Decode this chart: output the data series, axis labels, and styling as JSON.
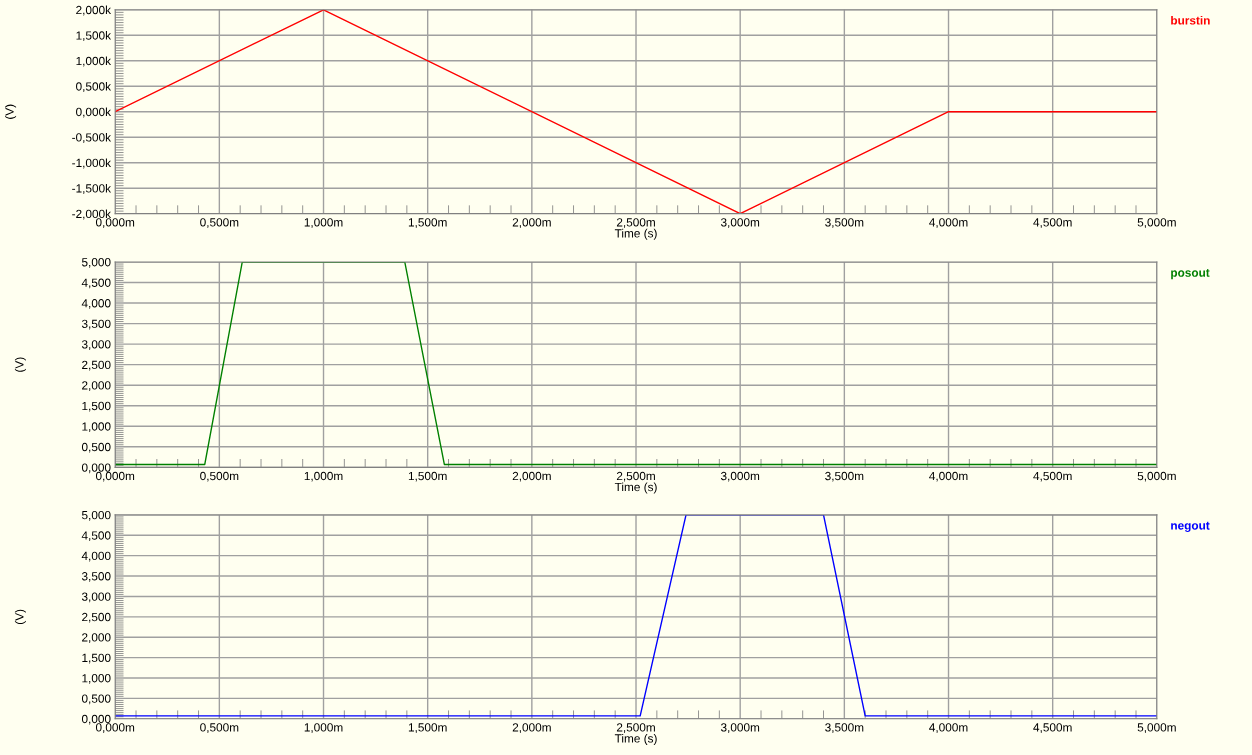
{
  "chart_data": [
    {
      "type": "line",
      "xlabel": "Time (s)",
      "ylabel": "(V)",
      "grid": true,
      "xlim": [
        0,
        5
      ],
      "ylim": [
        -2,
        2
      ],
      "x": [
        0,
        1,
        3,
        4,
        5
      ],
      "series": [
        {
          "name": "burstin",
          "color": "#ff0000",
          "values": [
            0,
            2,
            -2,
            0,
            0
          ]
        }
      ],
      "xticks": [
        {
          "value": 0,
          "label": "0,000m"
        },
        {
          "value": 0.5,
          "label": "0,500m"
        },
        {
          "value": 1,
          "label": "1,000m"
        },
        {
          "value": 1.5,
          "label": "1,500m"
        },
        {
          "value": 2,
          "label": "2,000m"
        },
        {
          "value": 2.5,
          "label": "2,500m"
        },
        {
          "value": 3,
          "label": "3,000m"
        },
        {
          "value": 3.5,
          "label": "3,500m"
        },
        {
          "value": 4,
          "label": "4,000m"
        },
        {
          "value": 4.5,
          "label": "4,500m"
        },
        {
          "value": 5,
          "label": "5,000m"
        }
      ],
      "yticks": [
        {
          "value": -2,
          "label": "-2,000k"
        },
        {
          "value": -1.5,
          "label": "-1,500k"
        },
        {
          "value": -1,
          "label": "-1,000k"
        },
        {
          "value": -0.5,
          "label": "-0,500k"
        },
        {
          "value": 0,
          "label": "0,000k"
        },
        {
          "value": 0.5,
          "label": "0,500k"
        },
        {
          "value": 1,
          "label": "1,000k"
        },
        {
          "value": 1.5,
          "label": "1,500k"
        },
        {
          "value": 2,
          "label": "2,000k"
        }
      ]
    },
    {
      "type": "line",
      "xlabel": "Time (s)",
      "ylabel": "(V)",
      "grid": true,
      "xlim": [
        0,
        5
      ],
      "ylim": [
        0,
        5
      ],
      "x": [
        0,
        0.43,
        0.61,
        1.39,
        1.58,
        5
      ],
      "series": [
        {
          "name": "posout",
          "color": "#008000",
          "values": [
            0.07,
            0.07,
            5,
            5,
            0.07,
            0.07
          ]
        }
      ],
      "xticks": [
        {
          "value": 0,
          "label": "0,000m"
        },
        {
          "value": 0.5,
          "label": "0,500m"
        },
        {
          "value": 1,
          "label": "1,000m"
        },
        {
          "value": 1.5,
          "label": "1,500m"
        },
        {
          "value": 2,
          "label": "2,000m"
        },
        {
          "value": 2.5,
          "label": "2,500m"
        },
        {
          "value": 3,
          "label": "3,000m"
        },
        {
          "value": 3.5,
          "label": "3,500m"
        },
        {
          "value": 4,
          "label": "4,000m"
        },
        {
          "value": 4.5,
          "label": "4,500m"
        },
        {
          "value": 5,
          "label": "5,000m"
        }
      ],
      "yticks": [
        {
          "value": 0,
          "label": "0,000"
        },
        {
          "value": 0.5,
          "label": "0,500"
        },
        {
          "value": 1,
          "label": "1,000"
        },
        {
          "value": 1.5,
          "label": "1,500"
        },
        {
          "value": 2,
          "label": "2,000"
        },
        {
          "value": 2.5,
          "label": "2,500"
        },
        {
          "value": 3,
          "label": "3,000"
        },
        {
          "value": 3.5,
          "label": "3,500"
        },
        {
          "value": 4,
          "label": "4,000"
        },
        {
          "value": 4.5,
          "label": "4,500"
        },
        {
          "value": 5,
          "label": "5,000"
        }
      ]
    },
    {
      "type": "line",
      "xlabel": "Time (s)",
      "ylabel": "(V)",
      "grid": true,
      "xlim": [
        0,
        5
      ],
      "ylim": [
        0,
        5
      ],
      "x": [
        0,
        2.52,
        2.74,
        3.4,
        3.6,
        5
      ],
      "series": [
        {
          "name": "negout",
          "color": "#0000ff",
          "values": [
            0.07,
            0.07,
            5,
            5,
            0.07,
            0.07
          ]
        }
      ],
      "xticks": [
        {
          "value": 0,
          "label": "0,000m"
        },
        {
          "value": 0.5,
          "label": "0,500m"
        },
        {
          "value": 1,
          "label": "1,000m"
        },
        {
          "value": 1.5,
          "label": "1,500m"
        },
        {
          "value": 2,
          "label": "2,000m"
        },
        {
          "value": 2.5,
          "label": "2,500m"
        },
        {
          "value": 3,
          "label": "3,000m"
        },
        {
          "value": 3.5,
          "label": "3,500m"
        },
        {
          "value": 4,
          "label": "4,000m"
        },
        {
          "value": 4.5,
          "label": "4,500m"
        },
        {
          "value": 5,
          "label": "5,000m"
        }
      ],
      "yticks": [
        {
          "value": 0,
          "label": "0,000"
        },
        {
          "value": 0.5,
          "label": "0,500"
        },
        {
          "value": 1,
          "label": "1,000"
        },
        {
          "value": 1.5,
          "label": "1,500"
        },
        {
          "value": 2,
          "label": "2,000"
        },
        {
          "value": 2.5,
          "label": "2,500"
        },
        {
          "value": 3,
          "label": "3,000"
        },
        {
          "value": 3.5,
          "label": "3,500"
        },
        {
          "value": 4,
          "label": "4,000"
        },
        {
          "value": 4.5,
          "label": "4,500"
        },
        {
          "value": 5,
          "label": "5,000"
        }
      ]
    }
  ]
}
